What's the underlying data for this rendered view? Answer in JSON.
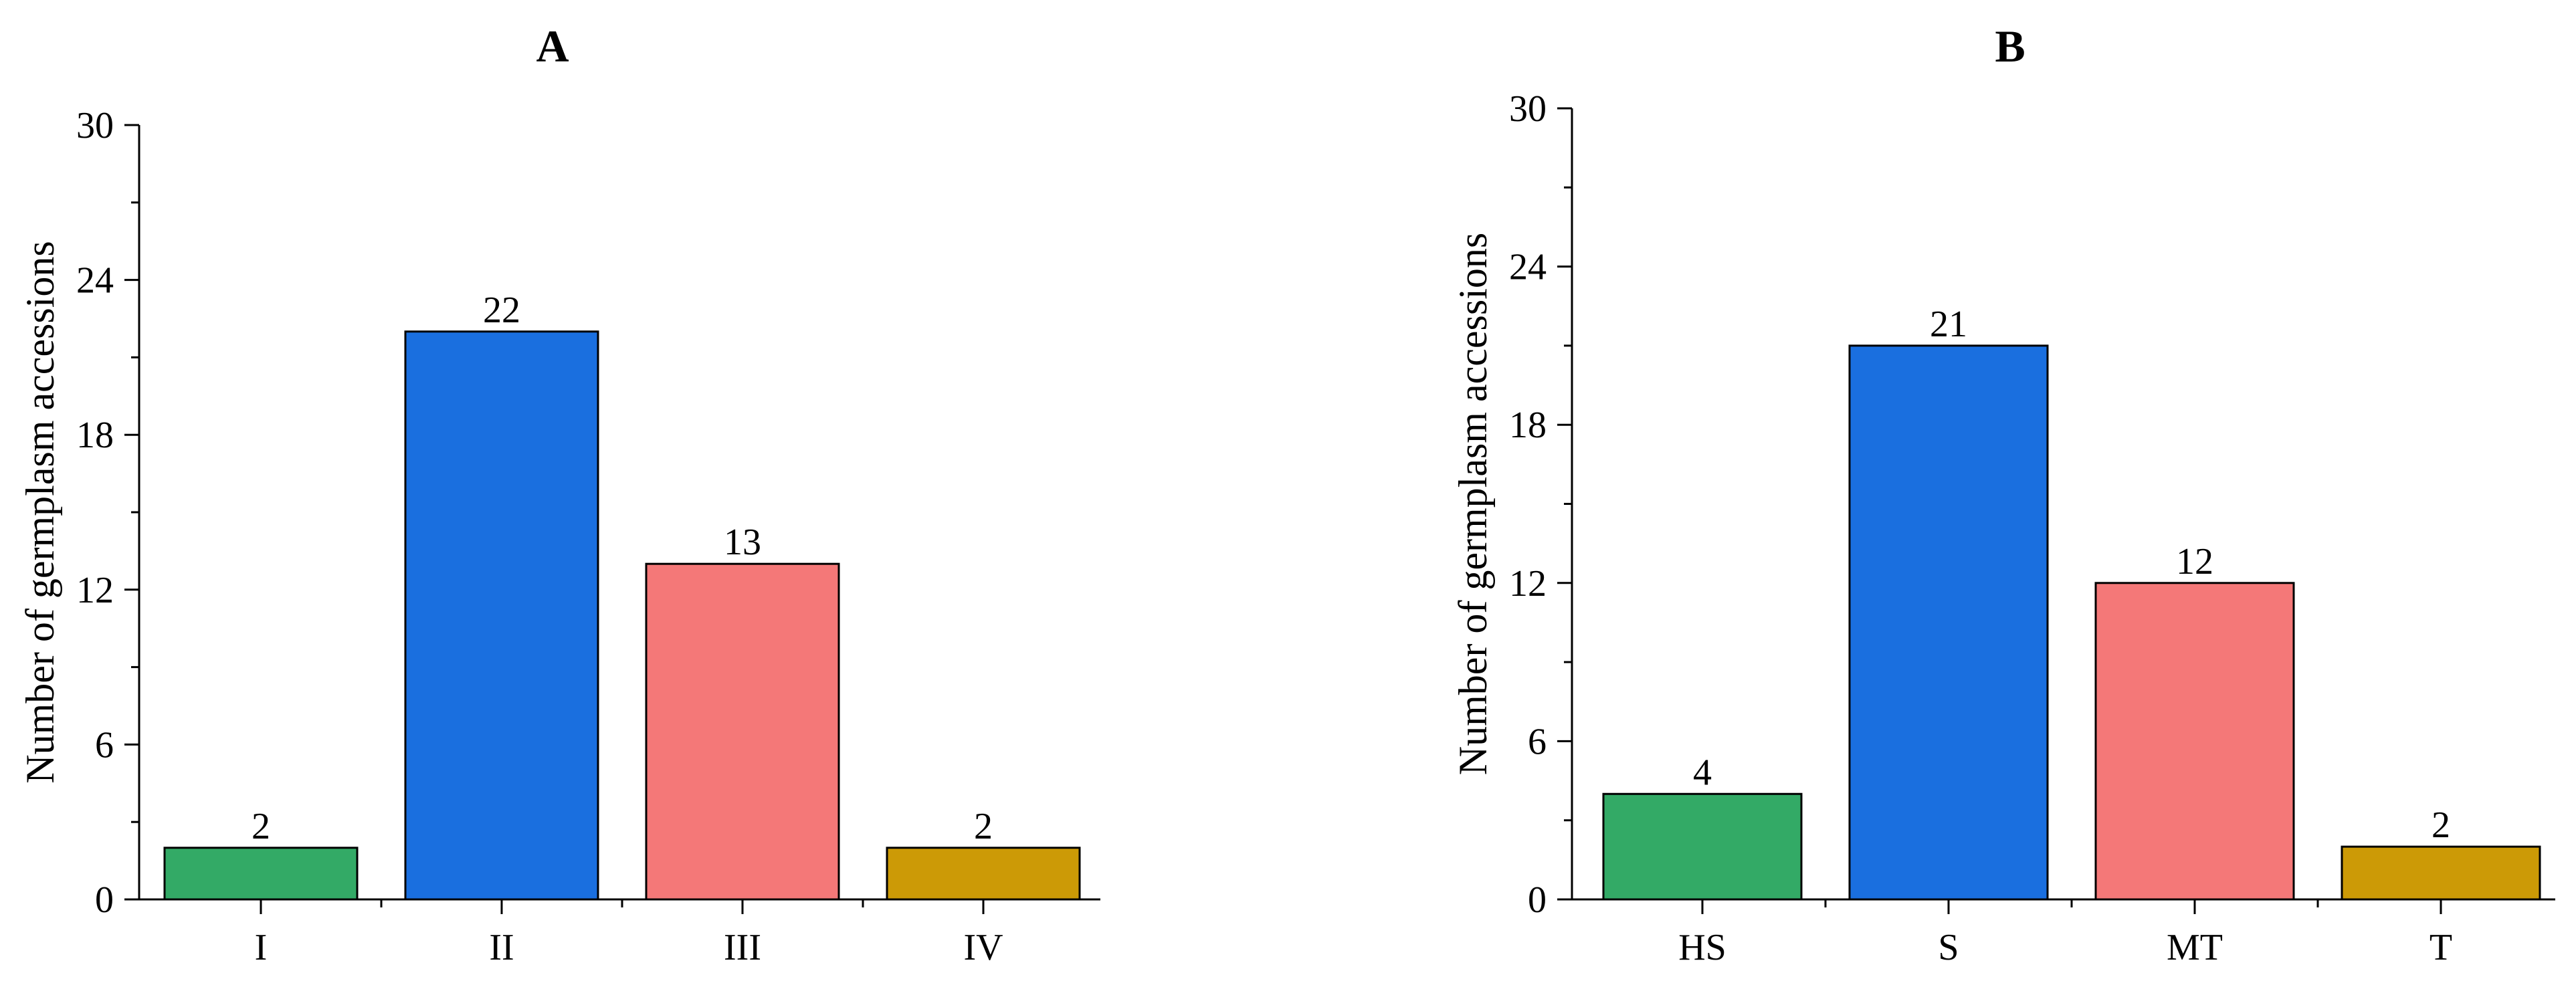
{
  "chart_data": [
    {
      "type": "bar",
      "title": "A",
      "xlabel": "",
      "ylabel": "Number of germplasm accessions",
      "categories": [
        "I",
        "II",
        "III",
        "IV"
      ],
      "values": [
        2,
        22,
        13,
        2
      ],
      "data_labels": [
        "2",
        "22",
        "13",
        "2"
      ],
      "colors": [
        "#33AA66",
        "#1A6FDF",
        "#F47878",
        "#CC9A06"
      ],
      "ylim": [
        0,
        30
      ],
      "yticks": [
        0,
        6,
        12,
        18,
        24,
        30
      ],
      "ytick_labels": [
        "0",
        "6",
        "12",
        "18",
        "24",
        "30"
      ],
      "grid": false
    },
    {
      "type": "bar",
      "title": "B",
      "xlabel": "",
      "ylabel": "Number of germplasm accessions",
      "categories": [
        "HS",
        "S",
        "MT",
        "T"
      ],
      "values": [
        4,
        21,
        12,
        2
      ],
      "data_labels": [
        "4",
        "21",
        "12",
        "2"
      ],
      "colors": [
        "#33AA66",
        "#1A6FDF",
        "#F47878",
        "#CC9A06"
      ],
      "ylim": [
        0,
        30
      ],
      "yticks": [
        0,
        6,
        12,
        18,
        24,
        30
      ],
      "ytick_labels": [
        "0",
        "6",
        "12",
        "18",
        "24",
        "30"
      ],
      "grid": false
    }
  ]
}
